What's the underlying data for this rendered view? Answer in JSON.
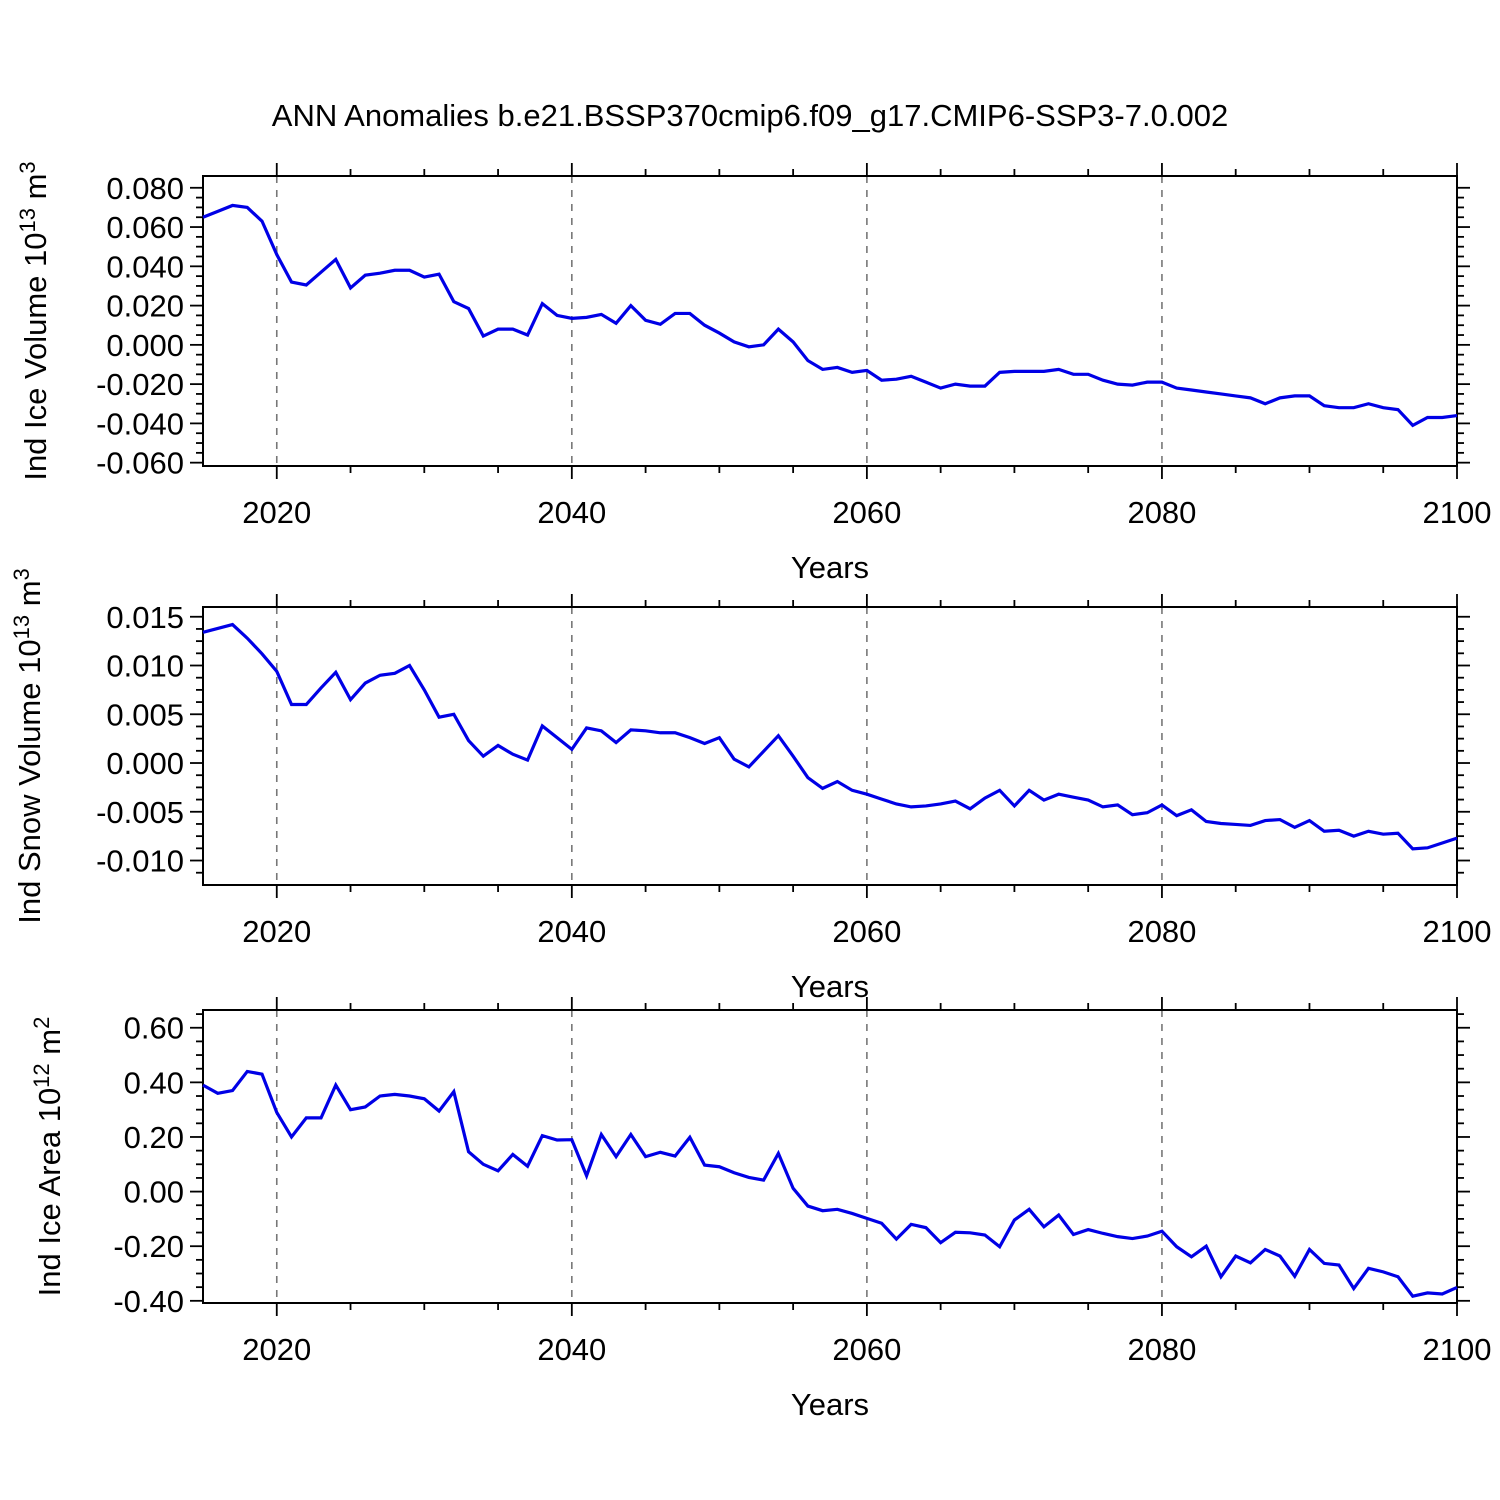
{
  "title": "ANN Anomalies b.e21.BSSP370cmip6.f09_g17.CMIP6-SSP3-7.0.002",
  "colors": {
    "line": "#0000e6",
    "frame": "#000000",
    "gridline": "#777777",
    "text": "#000000",
    "background": "#ffffff"
  },
  "x_axis": {
    "label": "Years",
    "range": [
      2015,
      2100
    ],
    "major_ticks": [
      2020,
      2040,
      2060,
      2080,
      2100
    ],
    "tick_labels": [
      "2020",
      "2040",
      "2060",
      "2080",
      "2100"
    ],
    "minor_step": 5,
    "dashed_gridline_years": [
      2020,
      2040,
      2060,
      2080
    ]
  },
  "chart_data": [
    {
      "type": "line",
      "name": "ind-ice-volume",
      "ylabel": "Ind Ice Volume 10^13 m^3",
      "ylabel_segments": [
        {
          "t": "Ind Ice Volume 10"
        },
        {
          "t": "13",
          "sup": true
        },
        {
          "t": " m"
        },
        {
          "t": "3",
          "sup": true
        }
      ],
      "ylim": [
        -0.0617,
        0.086
      ],
      "yticks": [
        0.08,
        0.06,
        0.04,
        0.02,
        0.0,
        -0.02,
        -0.04,
        -0.06
      ],
      "ytick_labels": [
        "0.080",
        "0.060",
        "0.040",
        "0.020",
        "0.000",
        "-0.020",
        "-0.040",
        "-0.060"
      ],
      "y_minor_step": 0.005,
      "x_start": 2015,
      "x_step": 1,
      "values": [
        0.065,
        0.068,
        0.071,
        0.07,
        0.063,
        0.046,
        0.032,
        0.0305,
        0.037,
        0.0435,
        0.029,
        0.0355,
        0.0365,
        0.038,
        0.038,
        0.0345,
        0.036,
        0.022,
        0.0185,
        0.0045,
        0.008,
        0.008,
        0.005,
        0.021,
        0.015,
        0.0135,
        0.014,
        0.0155,
        0.011,
        0.02,
        0.0125,
        0.0105,
        0.016,
        0.016,
        0.01,
        0.006,
        0.0015,
        -0.001,
        0.0,
        0.008,
        0.0015,
        -0.008,
        -0.0125,
        -0.0115,
        -0.014,
        -0.013,
        -0.018,
        -0.0175,
        -0.016,
        -0.019,
        -0.022,
        -0.02,
        -0.021,
        -0.021,
        -0.014,
        -0.0135,
        -0.0135,
        -0.0135,
        -0.0125,
        -0.015,
        -0.015,
        -0.018,
        -0.02,
        -0.0205,
        -0.019,
        -0.019,
        -0.022,
        -0.023,
        -0.024,
        -0.025,
        -0.026,
        -0.027,
        -0.03,
        -0.027,
        -0.026,
        -0.026,
        -0.031,
        -0.032,
        -0.032,
        -0.03,
        -0.032,
        -0.033,
        -0.041,
        -0.037,
        -0.037,
        -0.036
      ]
    },
    {
      "type": "line",
      "name": "ind-snow-volume",
      "ylabel": "Ind Snow Volume 10^13 m^3",
      "ylabel_segments": [
        {
          "t": "Ind Snow Volume 10"
        },
        {
          "t": "13",
          "sup": true
        },
        {
          "t": " m"
        },
        {
          "t": "3",
          "sup": true
        }
      ],
      "ylim": [
        -0.01251,
        0.016
      ],
      "yticks": [
        0.015,
        0.01,
        0.005,
        0.0,
        -0.005,
        -0.01
      ],
      "ytick_labels": [
        "0.015",
        "0.010",
        "0.005",
        "0.000",
        "-0.005",
        "-0.010"
      ],
      "y_minor_step": 0.00125,
      "x_start": 2015,
      "x_step": 1,
      "values": [
        0.0134,
        0.0138,
        0.0142,
        0.0128,
        0.0112,
        0.0094,
        0.006,
        0.006,
        0.0077,
        0.0093,
        0.0065,
        0.0082,
        0.009,
        0.0092,
        0.01,
        0.0075,
        0.0047,
        0.005,
        0.0023,
        0.0007,
        0.0018,
        0.0009,
        0.0003,
        0.0038,
        0.0026,
        0.0014,
        0.0036,
        0.0033,
        0.0021,
        0.0034,
        0.0033,
        0.0031,
        0.0031,
        0.0026,
        0.002,
        0.0026,
        0.0004,
        -0.0004,
        0.0012,
        0.0028,
        0.0007,
        -0.0015,
        -0.0026,
        -0.0019,
        -0.0028,
        -0.0032,
        -0.0037,
        -0.0042,
        -0.0045,
        -0.0044,
        -0.0042,
        -0.0039,
        -0.0047,
        -0.0036,
        -0.0028,
        -0.0044,
        -0.0028,
        -0.0038,
        -0.0032,
        -0.0035,
        -0.0038,
        -0.0045,
        -0.0043,
        -0.0053,
        -0.0051,
        -0.0043,
        -0.0054,
        -0.0048,
        -0.006,
        -0.0062,
        -0.0063,
        -0.0064,
        -0.0059,
        -0.0058,
        -0.0066,
        -0.0059,
        -0.007,
        -0.0069,
        -0.0075,
        -0.007,
        -0.0073,
        -0.0072,
        -0.0088,
        -0.0087,
        -0.0082,
        -0.0077
      ]
    },
    {
      "type": "line",
      "name": "ind-ice-area",
      "ylabel": "Ind Ice Area 10^12 m^2",
      "ylabel_segments": [
        {
          "t": "Ind Ice Area 10"
        },
        {
          "t": "12",
          "sup": true
        },
        {
          "t": " m"
        },
        {
          "t": "2",
          "sup": true
        }
      ],
      "ylim": [
        -0.408,
        0.665
      ],
      "yticks": [
        0.6,
        0.4,
        0.2,
        0.0,
        -0.2,
        -0.4
      ],
      "ytick_labels": [
        "0.60",
        "0.40",
        "0.20",
        "0.00",
        "-0.20",
        "-0.40"
      ],
      "y_minor_step": 0.05,
      "x_start": 2015,
      "x_step": 1,
      "values": [
        0.39,
        0.36,
        0.37,
        0.44,
        0.43,
        0.29,
        0.2,
        0.27,
        0.27,
        0.39,
        0.3,
        0.31,
        0.35,
        0.356,
        0.35,
        0.34,
        0.295,
        0.366,
        0.146,
        0.1,
        0.076,
        0.136,
        0.093,
        0.205,
        0.189,
        0.19,
        0.058,
        0.209,
        0.128,
        0.209,
        0.128,
        0.144,
        0.13,
        0.199,
        0.097,
        0.091,
        0.069,
        0.052,
        0.042,
        0.14,
        0.012,
        -0.053,
        -0.07,
        -0.065,
        -0.08,
        -0.098,
        -0.116,
        -0.174,
        -0.12,
        -0.132,
        -0.187,
        -0.149,
        -0.151,
        -0.159,
        -0.202,
        -0.104,
        -0.065,
        -0.129,
        -0.086,
        -0.157,
        -0.139,
        -0.153,
        -0.165,
        -0.172,
        -0.163,
        -0.145,
        -0.202,
        -0.239,
        -0.2,
        -0.312,
        -0.236,
        -0.261,
        -0.212,
        -0.236,
        -0.31,
        -0.212,
        -0.263,
        -0.269,
        -0.355,
        -0.281,
        -0.294,
        -0.312,
        -0.383,
        -0.371,
        -0.375,
        -0.351
      ]
    }
  ]
}
